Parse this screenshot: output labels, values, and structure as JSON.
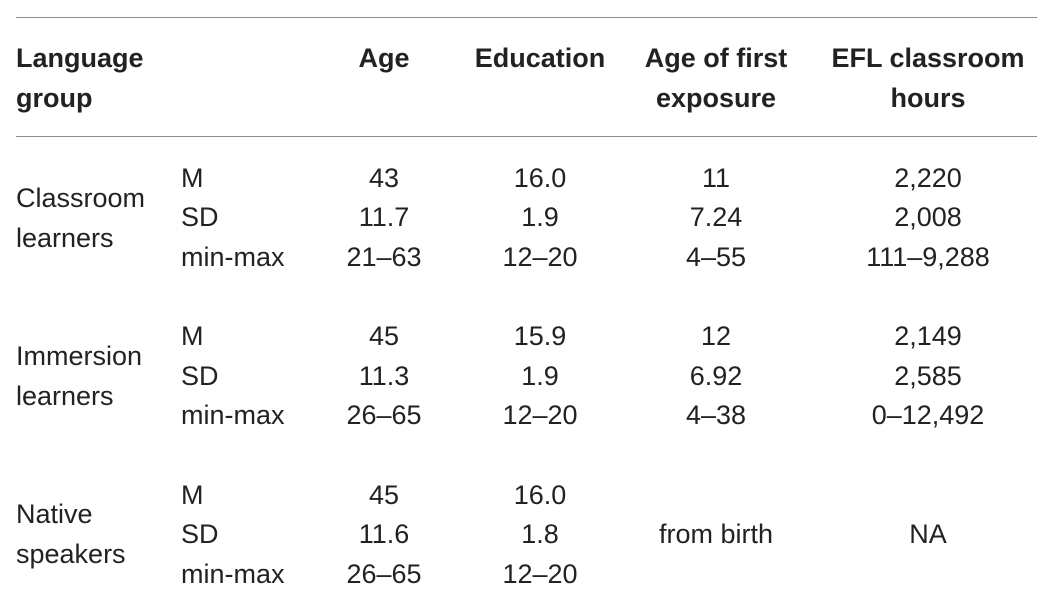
{
  "header": {
    "language_group": [
      "Language",
      "group"
    ],
    "age": "Age",
    "education": "Education",
    "age_first_exposure": [
      "Age of first",
      "exposure"
    ],
    "efl_hours": [
      "EFL classroom",
      "hours"
    ]
  },
  "stat_labels": [
    "M",
    "SD",
    "min-max"
  ],
  "groups": [
    {
      "name": [
        "Classroom",
        "learners"
      ],
      "age": [
        "43",
        "11.7",
        "21–63"
      ],
      "education": [
        "16.0",
        "1.9",
        "12–20"
      ],
      "age_first_exposure": [
        "11",
        "7.24",
        "4–55"
      ],
      "efl_hours": [
        "2,220",
        "2,008",
        "111–9,288"
      ]
    },
    {
      "name": [
        "Immersion",
        "learners"
      ],
      "age": [
        "45",
        "11.3",
        "26–65"
      ],
      "education": [
        "15.9",
        "1.9",
        "12–20"
      ],
      "age_first_exposure": [
        "12",
        "6.92",
        "4–38"
      ],
      "efl_hours": [
        "2,149",
        "2,585",
        "0–12,492"
      ]
    },
    {
      "name": [
        "Native",
        "speakers"
      ],
      "age": [
        "45",
        "11.6",
        "26–65"
      ],
      "education": [
        "16.0",
        "1.8",
        "12–20"
      ],
      "age_first_exposure_text": "from birth",
      "efl_hours_text": "NA"
    }
  ]
}
